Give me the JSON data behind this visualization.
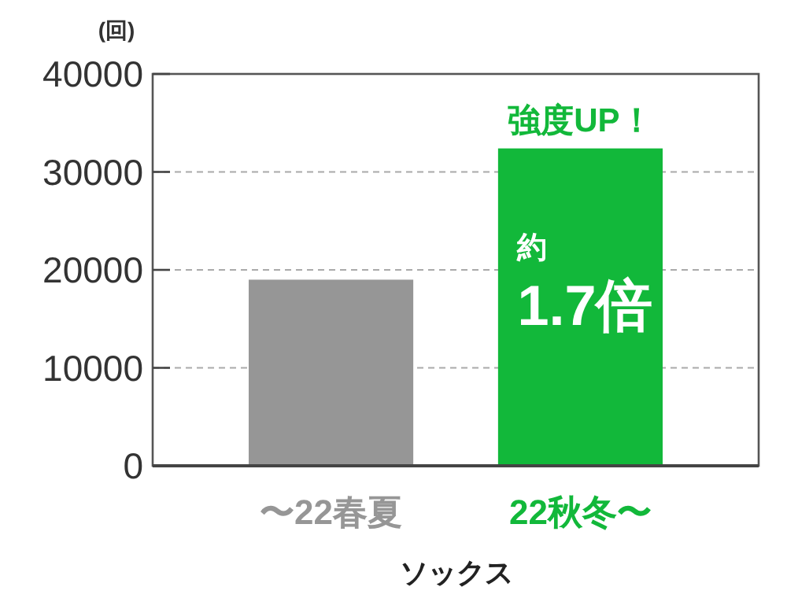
{
  "chart_data": {
    "type": "bar",
    "categories": [
      "〜22春夏",
      "22秋冬〜"
    ],
    "values": [
      19000,
      32400
    ],
    "colors": [
      "#969696",
      "#12b83a"
    ],
    "ylabel": "(回)",
    "xlabel": "ソックス",
    "ylim": [
      0,
      40000
    ],
    "yticks": [
      0,
      10000,
      20000,
      30000,
      40000
    ],
    "grid": "y",
    "annotations": [
      {
        "text": "強度UP！",
        "x": "22秋冬〜",
        "y": 32400
      },
      "約",
      "1.7倍"
    ]
  }
}
